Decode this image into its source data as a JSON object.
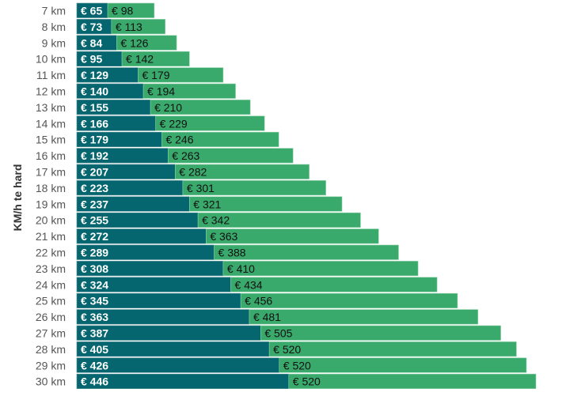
{
  "chart_data": {
    "type": "bar",
    "orientation": "horizontal",
    "stacked": true,
    "ylabel": "KM/h te hard",
    "xlabel": "",
    "value_prefix": "€ ",
    "categories": [
      "7 km",
      "8 km",
      "9 km",
      "10 km",
      "11 km",
      "12 km",
      "13 km",
      "14 km",
      "15 km",
      "16 km",
      "17 km",
      "18 km",
      "19 km",
      "20 km",
      "21 km",
      "22 km",
      "23 km",
      "24 km",
      "25 km",
      "26 km",
      "27 km",
      "28 km",
      "29 km",
      "30 km"
    ],
    "series": [
      {
        "name": "series-1",
        "color": "#05666f",
        "values": [
          65,
          73,
          84,
          95,
          129,
          140,
          155,
          166,
          179,
          192,
          207,
          223,
          237,
          255,
          272,
          289,
          308,
          324,
          345,
          363,
          387,
          405,
          426,
          446
        ]
      },
      {
        "name": "series-2",
        "color": "#3aa96c",
        "values": [
          98,
          113,
          126,
          142,
          179,
          194,
          210,
          229,
          246,
          263,
          282,
          301,
          321,
          342,
          363,
          388,
          410,
          434,
          456,
          481,
          505,
          520,
          520,
          520
        ]
      }
    ],
    "xlim": [
      0,
      970
    ],
    "grid": false,
    "legend": "none"
  }
}
